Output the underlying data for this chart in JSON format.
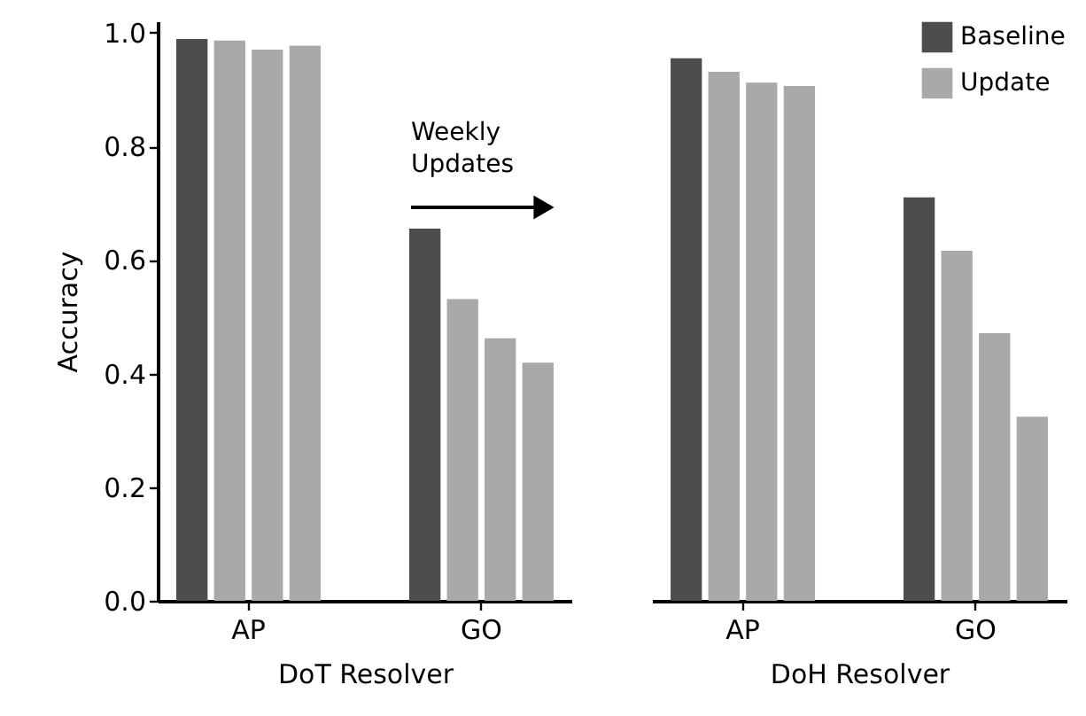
{
  "chart_data": [
    {
      "type": "bar",
      "xlabel": "DoT Resolver",
      "ylabel": "Accuracy",
      "categories": [
        "AP",
        "GO"
      ],
      "series": [
        {
          "color": "#4d4d4d",
          "values": [
            0.989,
            0.655
          ]
        },
        {
          "color": "#a9a9a9",
          "values": [
            0.986,
            0.531
          ]
        },
        {
          "color": "#a9a9a9",
          "values": [
            0.97,
            0.462
          ]
        },
        {
          "color": "#a9a9a9",
          "values": [
            0.977,
            0.419
          ]
        }
      ],
      "ylim": [
        0,
        1.02
      ],
      "yticks": [
        {
          "value": 0,
          "label": "0.0"
        },
        0.2,
        0.4,
        0.6,
        0.8,
        {
          "value": 1,
          "label": "1.0"
        }
      ],
      "annotations": [
        "Weekly Updates"
      ]
    },
    {
      "type": "bar",
      "xlabel": "DoH Resolver",
      "categories": [
        "AP",
        "GO"
      ],
      "series": [
        {
          "name": "Baseline",
          "color": "#4d4d4d",
          "values": [
            0.955,
            0.71
          ]
        },
        {
          "name": "Update",
          "color": "#a9a9a9",
          "values": [
            0.931,
            0.616
          ]
        },
        {
          "color": "#a9a9a9",
          "values": [
            0.912,
            0.471
          ]
        },
        {
          "color": "#a9a9a9",
          "values": [
            0.906,
            0.324
          ]
        }
      ],
      "ylim": [
        0,
        1.02
      ],
      "tick_labels": "x",
      "legend": "top right"
    }
  ]
}
